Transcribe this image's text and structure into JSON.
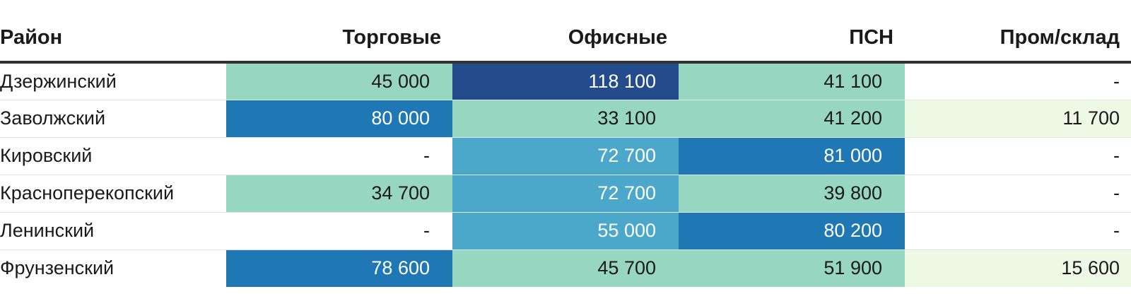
{
  "chart_data": {
    "type": "table",
    "columns": [
      "Район",
      "Торговые",
      "Офисные",
      "ПСН",
      "Пром/склад"
    ],
    "rows": [
      {
        "district": "Дзержинский",
        "cells": [
          "45 000",
          "118 100",
          "41 100",
          "-"
        ]
      },
      {
        "district": "Заволжский",
        "cells": [
          "80 000",
          "33 100",
          "41 200",
          "11 700"
        ]
      },
      {
        "district": "Кировский",
        "cells": [
          "-",
          "72 700",
          "81 000",
          "-"
        ]
      },
      {
        "district": "Красноперекопский",
        "cells": [
          "34 700",
          "72 700",
          "39 800",
          "-"
        ]
      },
      {
        "district": "Ленинский",
        "cells": [
          "-",
          "55 000",
          "80 200",
          "-"
        ]
      },
      {
        "district": "Фрунзенский",
        "cells": [
          "78 600",
          "45 700",
          "51 900",
          "15 600"
        ]
      }
    ],
    "colors": {
      "scale": [
        {
          "threshold": 0,
          "bg": "#ffffff",
          "fg": "#1a1a1a"
        },
        {
          "threshold": 1,
          "bg": "#edf8e5",
          "fg": "#1a1a1a"
        },
        {
          "threshold": 30000,
          "bg": "#97d6c0",
          "fg": "#1a1a1a"
        },
        {
          "threshold": 55000,
          "bg": "#4ba8cb",
          "fg": "#ffffff"
        },
        {
          "threshold": 78000,
          "bg": "#1f78b4",
          "fg": "#ffffff"
        },
        {
          "threshold": 100000,
          "bg": "#244c8d",
          "fg": "#ffffff"
        }
      ],
      "header_rule": "#333333",
      "row_rule": "#e2e2e2"
    }
  }
}
